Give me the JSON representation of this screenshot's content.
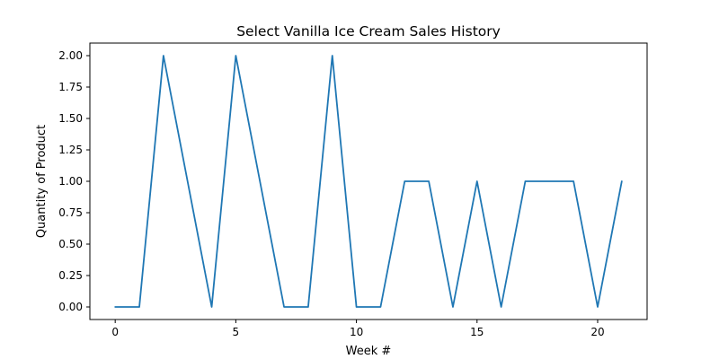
{
  "chart_data": {
    "type": "line",
    "title": "Select Vanilla Ice Cream Sales History",
    "xlabel": "Week #",
    "ylabel": "Quantity of Product",
    "x": [
      0,
      1,
      2,
      3,
      4,
      5,
      6,
      7,
      8,
      9,
      10,
      11,
      12,
      13,
      14,
      15,
      16,
      17,
      18,
      19,
      20,
      21
    ],
    "series": [
      {
        "values": [
          0,
          0,
          2,
          1,
          0,
          2,
          1,
          0,
          0,
          2,
          0,
          0,
          1,
          1,
          0,
          1,
          0,
          1,
          1,
          1,
          0,
          1
        ],
        "color": "#1f77b4"
      }
    ],
    "xlim": [
      -1.05,
      22.05
    ],
    "ylim": [
      -0.1,
      2.1
    ],
    "xticks": [
      0,
      5,
      10,
      15,
      20
    ],
    "xtick_labels": [
      "0",
      "5",
      "10",
      "15",
      "20"
    ],
    "yticks": [
      0,
      0.25,
      0.5,
      0.75,
      1.0,
      1.25,
      1.5,
      1.75,
      2.0
    ],
    "ytick_labels": [
      "0.00",
      "0.25",
      "0.50",
      "0.75",
      "1.00",
      "1.25",
      "1.50",
      "1.75",
      "2.00"
    ],
    "grid": false,
    "legend": "none"
  }
}
